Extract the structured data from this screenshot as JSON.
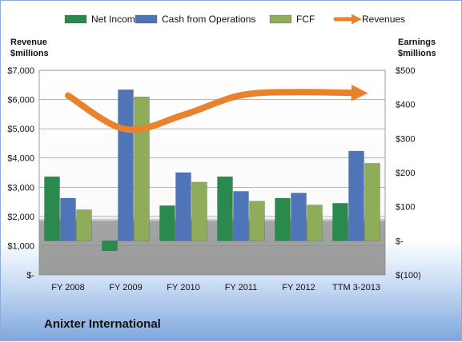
{
  "company_name": "Anixter International",
  "chart_data": {
    "type": "bar",
    "categories": [
      "FY 2008",
      "FY 2009",
      "FY 2010",
      "FY 2011",
      "FY 2012",
      "TTM 3-2013"
    ],
    "legend_position": "top",
    "left_axis": {
      "label_line1": "Revenue",
      "label_line2": "$millions",
      "ylim": [
        0,
        7000
      ],
      "ticks": [
        {
          "value": 0,
          "label": "$-"
        },
        {
          "value": 1000,
          "label": "$1,000"
        },
        {
          "value": 2000,
          "label": "$2,000"
        },
        {
          "value": 3000,
          "label": "$3,000"
        },
        {
          "value": 4000,
          "label": "$4,000"
        },
        {
          "value": 5000,
          "label": "$5,000"
        },
        {
          "value": 6000,
          "label": "$6,000"
        },
        {
          "value": 7000,
          "label": "$7,000"
        }
      ]
    },
    "right_axis": {
      "label_line1": "Earnings",
      "label_line2": "$millions",
      "ylim": [
        -100,
        500
      ],
      "ticks": [
        {
          "value": -100,
          "label": "$(100)"
        },
        {
          "value": 0,
          "label": "$-"
        },
        {
          "value": 100,
          "label": "$100"
        },
        {
          "value": 200,
          "label": "$200"
        },
        {
          "value": 300,
          "label": "$300"
        },
        {
          "value": 400,
          "label": "$400"
        },
        {
          "value": 500,
          "label": "$500"
        }
      ]
    },
    "grid": true,
    "series": [
      {
        "name": "Net Income",
        "axis": "right",
        "kind": "bar",
        "color": "#2a8a4e",
        "values": [
          188,
          -29,
          103,
          188,
          125,
          110
        ]
      },
      {
        "name": "Cash from Operations",
        "axis": "right",
        "kind": "bar",
        "color": "#4f74b8",
        "values": [
          125,
          443,
          200,
          145,
          140,
          263
        ]
      },
      {
        "name": "FCF",
        "axis": "right",
        "kind": "bar",
        "color": "#8fac5a",
        "values": [
          91,
          422,
          172,
          116,
          105,
          227
        ]
      },
      {
        "name": "Revenues",
        "axis": "left",
        "kind": "line",
        "color": "#e8822c",
        "values": [
          6137,
          4982,
          5472,
          6147,
          6254,
          6225
        ]
      }
    ]
  }
}
